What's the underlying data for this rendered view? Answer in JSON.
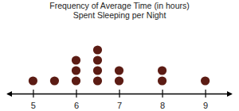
{
  "chart_data": {
    "type": "dot",
    "title": [
      "Frequency of Average Time (in hours)",
      "Spent Sleeping per Night"
    ],
    "x": [
      5,
      5.5,
      6,
      6.5,
      7,
      8,
      9
    ],
    "values": [
      1,
      1,
      3,
      4,
      2,
      2,
      1
    ],
    "color": "#5c1c14",
    "xlim": [
      4.4,
      9.6
    ],
    "xticks": [
      5,
      6,
      7,
      8,
      9
    ],
    "grid": false
  }
}
